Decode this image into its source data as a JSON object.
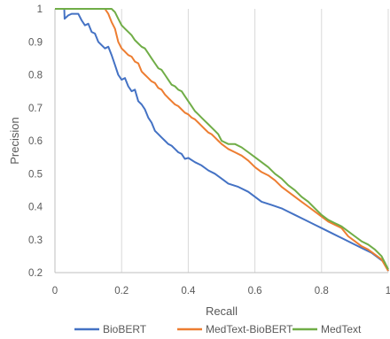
{
  "chart_data": {
    "type": "line",
    "title": "",
    "xlabel": "Recall",
    "ylabel": "Precision",
    "xlim": [
      0,
      1
    ],
    "ylim": [
      0.2,
      1
    ],
    "x_ticks": [
      0,
      0.2,
      0.4,
      0.6,
      0.8,
      1
    ],
    "x_tick_labels": [
      "0",
      "0.2",
      "0.4",
      "0.6",
      "0.8",
      "1"
    ],
    "y_ticks": [
      0.2,
      0.3,
      0.4,
      0.5,
      0.6,
      0.7,
      0.8,
      0.9,
      1
    ],
    "y_tick_labels": [
      "0.2",
      "0.3",
      "0.4",
      "0.5",
      "0.6",
      "0.7",
      "0.8",
      "0.9",
      "1"
    ],
    "grid": "vertical",
    "legend_position": "bottom",
    "series": [
      {
        "name": "BioBERT",
        "color": "#4472C4",
        "points": [
          [
            0.0,
            1.0
          ],
          [
            0.028,
            1.0
          ],
          [
            0.029,
            0.97
          ],
          [
            0.04,
            0.98
          ],
          [
            0.05,
            0.985
          ],
          [
            0.07,
            0.985
          ],
          [
            0.08,
            0.965
          ],
          [
            0.09,
            0.95
          ],
          [
            0.1,
            0.955
          ],
          [
            0.11,
            0.93
          ],
          [
            0.12,
            0.925
          ],
          [
            0.13,
            0.9
          ],
          [
            0.15,
            0.88
          ],
          [
            0.16,
            0.885
          ],
          [
            0.17,
            0.86
          ],
          [
            0.18,
            0.83
          ],
          [
            0.19,
            0.8
          ],
          [
            0.2,
            0.785
          ],
          [
            0.21,
            0.79
          ],
          [
            0.22,
            0.765
          ],
          [
            0.23,
            0.75
          ],
          [
            0.24,
            0.755
          ],
          [
            0.25,
            0.72
          ],
          [
            0.26,
            0.71
          ],
          [
            0.27,
            0.695
          ],
          [
            0.28,
            0.67
          ],
          [
            0.29,
            0.655
          ],
          [
            0.3,
            0.63
          ],
          [
            0.31,
            0.62
          ],
          [
            0.32,
            0.61
          ],
          [
            0.33,
            0.6
          ],
          [
            0.34,
            0.59
          ],
          [
            0.35,
            0.585
          ],
          [
            0.36,
            0.575
          ],
          [
            0.37,
            0.565
          ],
          [
            0.38,
            0.56
          ],
          [
            0.39,
            0.545
          ],
          [
            0.4,
            0.548
          ],
          [
            0.42,
            0.535
          ],
          [
            0.44,
            0.525
          ],
          [
            0.46,
            0.51
          ],
          [
            0.48,
            0.5
          ],
          [
            0.5,
            0.485
          ],
          [
            0.52,
            0.47
          ],
          [
            0.55,
            0.46
          ],
          [
            0.58,
            0.445
          ],
          [
            0.6,
            0.43
          ],
          [
            0.62,
            0.415
          ],
          [
            0.65,
            0.405
          ],
          [
            0.68,
            0.395
          ],
          [
            0.7,
            0.385
          ],
          [
            0.72,
            0.375
          ],
          [
            0.75,
            0.36
          ],
          [
            0.78,
            0.345
          ],
          [
            0.8,
            0.335
          ],
          [
            0.83,
            0.32
          ],
          [
            0.86,
            0.305
          ],
          [
            0.89,
            0.29
          ],
          [
            0.92,
            0.275
          ],
          [
            0.95,
            0.26
          ],
          [
            0.97,
            0.245
          ],
          [
            0.99,
            0.23
          ],
          [
            1.0,
            0.205
          ]
        ]
      },
      {
        "name": "MedText-BioBERT",
        "color": "#ED7D31",
        "points": [
          [
            0.0,
            1.0
          ],
          [
            0.15,
            1.0
          ],
          [
            0.16,
            0.985
          ],
          [
            0.17,
            0.96
          ],
          [
            0.18,
            0.94
          ],
          [
            0.19,
            0.9
          ],
          [
            0.2,
            0.88
          ],
          [
            0.21,
            0.87
          ],
          [
            0.22,
            0.86
          ],
          [
            0.23,
            0.855
          ],
          [
            0.24,
            0.84
          ],
          [
            0.25,
            0.835
          ],
          [
            0.26,
            0.81
          ],
          [
            0.27,
            0.8
          ],
          [
            0.28,
            0.79
          ],
          [
            0.29,
            0.78
          ],
          [
            0.3,
            0.775
          ],
          [
            0.31,
            0.76
          ],
          [
            0.32,
            0.755
          ],
          [
            0.33,
            0.74
          ],
          [
            0.34,
            0.73
          ],
          [
            0.35,
            0.72
          ],
          [
            0.36,
            0.71
          ],
          [
            0.37,
            0.705
          ],
          [
            0.38,
            0.695
          ],
          [
            0.39,
            0.685
          ],
          [
            0.4,
            0.68
          ],
          [
            0.41,
            0.67
          ],
          [
            0.42,
            0.665
          ],
          [
            0.43,
            0.655
          ],
          [
            0.44,
            0.645
          ],
          [
            0.45,
            0.635
          ],
          [
            0.46,
            0.625
          ],
          [
            0.47,
            0.62
          ],
          [
            0.48,
            0.61
          ],
          [
            0.49,
            0.6
          ],
          [
            0.5,
            0.59
          ],
          [
            0.52,
            0.575
          ],
          [
            0.54,
            0.565
          ],
          [
            0.56,
            0.555
          ],
          [
            0.58,
            0.54
          ],
          [
            0.6,
            0.52
          ],
          [
            0.62,
            0.505
          ],
          [
            0.64,
            0.495
          ],
          [
            0.66,
            0.48
          ],
          [
            0.68,
            0.46
          ],
          [
            0.7,
            0.445
          ],
          [
            0.72,
            0.43
          ],
          [
            0.74,
            0.415
          ],
          [
            0.76,
            0.4
          ],
          [
            0.78,
            0.385
          ],
          [
            0.8,
            0.37
          ],
          [
            0.82,
            0.355
          ],
          [
            0.84,
            0.345
          ],
          [
            0.86,
            0.335
          ],
          [
            0.88,
            0.31
          ],
          [
            0.9,
            0.295
          ],
          [
            0.92,
            0.28
          ],
          [
            0.94,
            0.27
          ],
          [
            0.96,
            0.255
          ],
          [
            0.98,
            0.24
          ],
          [
            1.0,
            0.205
          ]
        ]
      },
      {
        "name": "MedText",
        "color": "#70AD47",
        "points": [
          [
            0.0,
            1.0
          ],
          [
            0.17,
            1.0
          ],
          [
            0.18,
            0.99
          ],
          [
            0.19,
            0.97
          ],
          [
            0.2,
            0.95
          ],
          [
            0.21,
            0.94
          ],
          [
            0.22,
            0.93
          ],
          [
            0.23,
            0.92
          ],
          [
            0.24,
            0.905
          ],
          [
            0.25,
            0.895
          ],
          [
            0.26,
            0.885
          ],
          [
            0.27,
            0.88
          ],
          [
            0.28,
            0.865
          ],
          [
            0.29,
            0.85
          ],
          [
            0.3,
            0.835
          ],
          [
            0.31,
            0.82
          ],
          [
            0.32,
            0.815
          ],
          [
            0.33,
            0.8
          ],
          [
            0.34,
            0.785
          ],
          [
            0.35,
            0.77
          ],
          [
            0.36,
            0.765
          ],
          [
            0.37,
            0.755
          ],
          [
            0.38,
            0.75
          ],
          [
            0.39,
            0.735
          ],
          [
            0.4,
            0.72
          ],
          [
            0.41,
            0.705
          ],
          [
            0.42,
            0.69
          ],
          [
            0.43,
            0.68
          ],
          [
            0.44,
            0.67
          ],
          [
            0.45,
            0.66
          ],
          [
            0.46,
            0.65
          ],
          [
            0.47,
            0.64
          ],
          [
            0.48,
            0.63
          ],
          [
            0.49,
            0.62
          ],
          [
            0.5,
            0.6
          ],
          [
            0.52,
            0.59
          ],
          [
            0.54,
            0.59
          ],
          [
            0.56,
            0.58
          ],
          [
            0.58,
            0.565
          ],
          [
            0.6,
            0.55
          ],
          [
            0.62,
            0.535
          ],
          [
            0.64,
            0.52
          ],
          [
            0.66,
            0.5
          ],
          [
            0.68,
            0.485
          ],
          [
            0.7,
            0.465
          ],
          [
            0.72,
            0.45
          ],
          [
            0.74,
            0.43
          ],
          [
            0.76,
            0.415
          ],
          [
            0.78,
            0.395
          ],
          [
            0.8,
            0.375
          ],
          [
            0.82,
            0.36
          ],
          [
            0.84,
            0.35
          ],
          [
            0.86,
            0.34
          ],
          [
            0.88,
            0.325
          ],
          [
            0.9,
            0.31
          ],
          [
            0.92,
            0.295
          ],
          [
            0.94,
            0.285
          ],
          [
            0.96,
            0.27
          ],
          [
            0.98,
            0.25
          ],
          [
            1.0,
            0.21
          ]
        ]
      }
    ]
  }
}
